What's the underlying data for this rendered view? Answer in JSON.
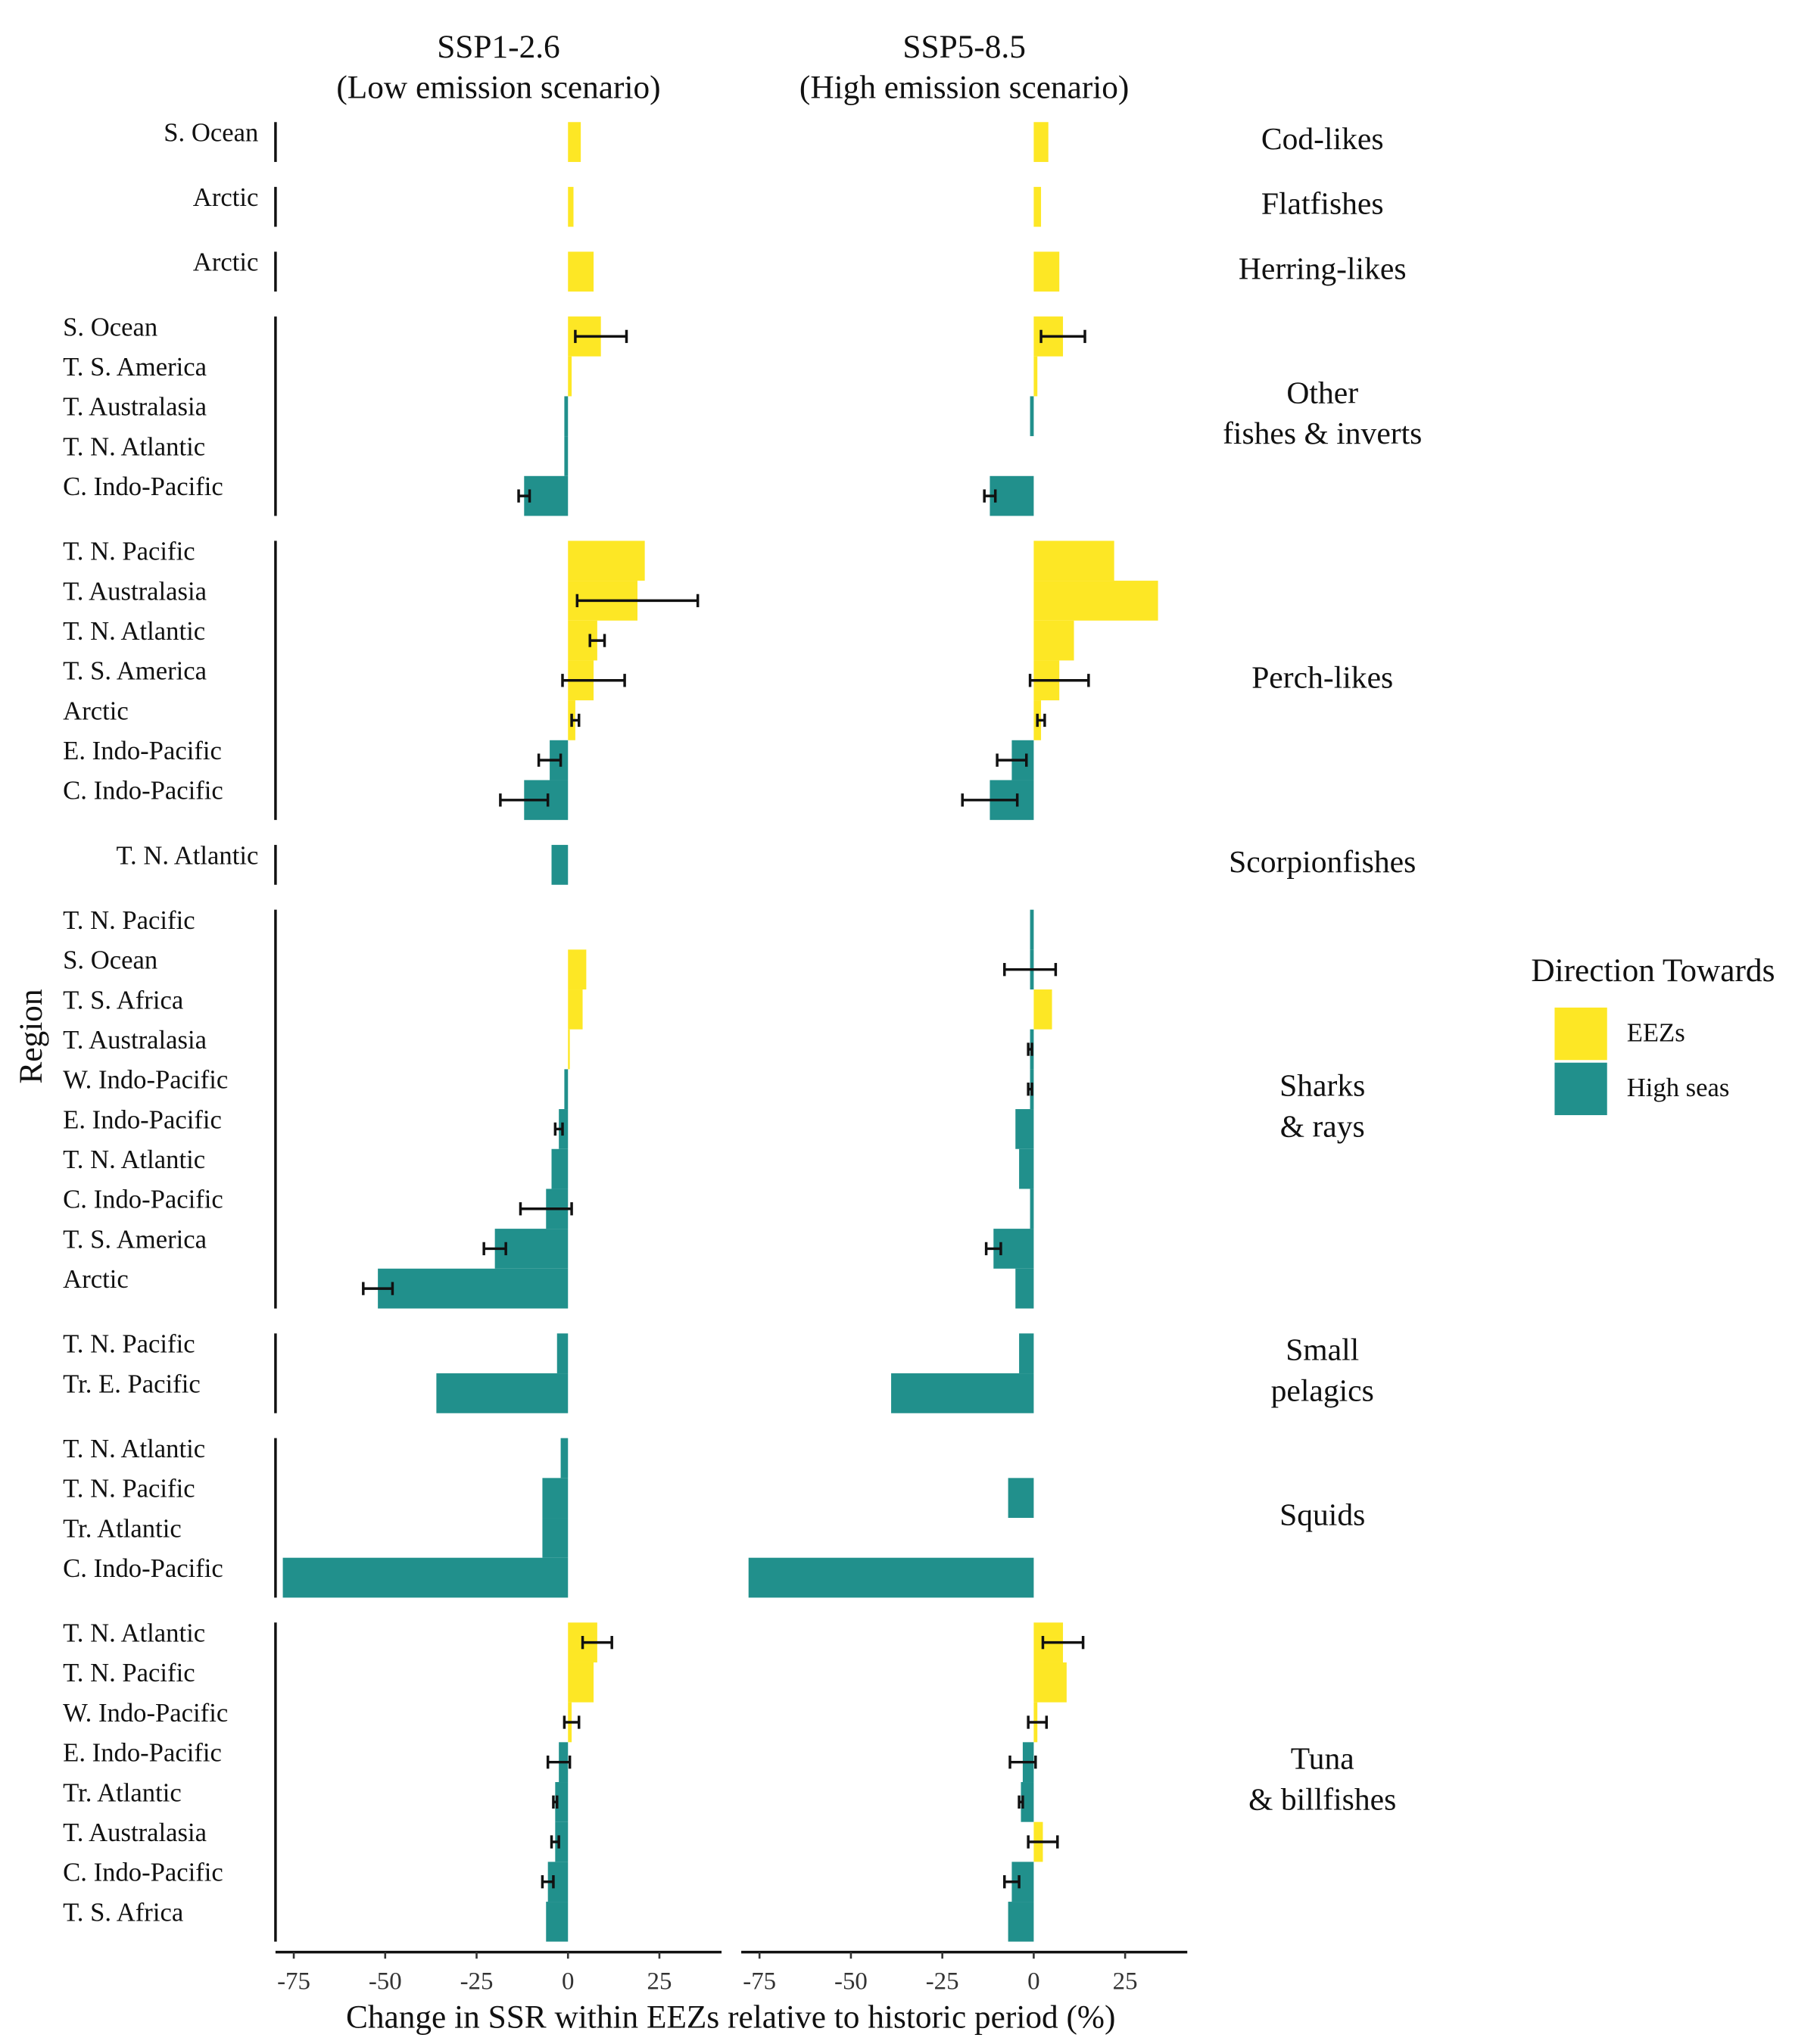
{
  "chart_data": {
    "type": "bar",
    "orientation": "horizontal",
    "panels": [
      {
        "title": [
          "SSP1-2.6",
          "(Low emission scenario)"
        ]
      },
      {
        "title": [
          "SSP5-8.5",
          "(High emission scenario)"
        ]
      }
    ],
    "xlabel": "Change in SSR within EEZs relative to historic period (%)",
    "ylabel": "Region",
    "xlim": [
      -80,
      42
    ],
    "xticks": [
      -75,
      -50,
      -25,
      0,
      25
    ],
    "legend": {
      "title": "Direction Towards",
      "entries": [
        {
          "name": "EEZs",
          "color": "#fde725"
        },
        {
          "name": "High seas",
          "color": "#21908c"
        }
      ]
    },
    "groups": [
      {
        "name": [
          "Cod-likes"
        ],
        "regions": [
          "S. Ocean"
        ],
        "series": [
          {
            "values": [
              3.5
            ],
            "errors": [
              null
            ]
          },
          {
            "values": [
              4
            ],
            "errors": [
              null
            ]
          }
        ]
      },
      {
        "name": [
          "Flatfishes"
        ],
        "regions": [
          "Arctic"
        ],
        "series": [
          {
            "values": [
              1.5
            ],
            "errors": [
              null
            ]
          },
          {
            "values": [
              2
            ],
            "errors": [
              null
            ]
          }
        ]
      },
      {
        "name": [
          "Herring-likes"
        ],
        "regions": [
          "Arctic"
        ],
        "series": [
          {
            "values": [
              7
            ],
            "errors": [
              null
            ]
          },
          {
            "values": [
              7
            ],
            "errors": [
              null
            ]
          }
        ]
      },
      {
        "name": [
          "Other",
          "fishes & inverts"
        ],
        "regions": [
          "S. Ocean",
          "T. S. America",
          "T. Australasia",
          "T. N. Atlantic",
          "C. Indo-Pacific"
        ],
        "series": [
          {
            "values": [
              9,
              1,
              -1,
              -1,
              -12
            ],
            "errors": [
              7,
              null,
              null,
              null,
              1.5
            ]
          },
          {
            "values": [
              8,
              1,
              -1,
              null,
              -12
            ],
            "errors": [
              6,
              null,
              null,
              null,
              1.5
            ]
          }
        ]
      },
      {
        "name": [
          "Perch-likes"
        ],
        "regions": [
          "T. N. Pacific",
          "T. Australasia",
          "T. N. Atlantic",
          "T. S. America",
          "Arctic",
          "E. Indo-Pacific",
          "C. Indo-Pacific"
        ],
        "series": [
          {
            "values": [
              21,
              19,
              8,
              7,
              2,
              -5,
              -12
            ],
            "errors": [
              null,
              16.5,
              2,
              8.5,
              1,
              3,
              6.5
            ]
          },
          {
            "values": [
              22,
              34,
              11,
              7,
              2,
              -6,
              -12
            ],
            "errors": [
              null,
              null,
              null,
              8,
              1,
              4,
              7.5
            ]
          }
        ]
      },
      {
        "name": [
          "Scorpionfishes"
        ],
        "regions": [
          "T. N. Atlantic"
        ],
        "series": [
          {
            "values": [
              -4.5
            ],
            "errors": [
              null
            ]
          },
          {
            "values": [
              null
            ],
            "errors": [
              null
            ]
          }
        ]
      },
      {
        "name": [
          "Sharks",
          "& rays"
        ],
        "regions": [
          "T. N. Pacific",
          "S. Ocean",
          "T. S. Africa",
          "T. Australasia",
          "W. Indo-Pacific",
          "E. Indo-Pacific",
          "T. N. Atlantic",
          "C. Indo-Pacific",
          "T. S. America",
          "Arctic"
        ],
        "series": [
          {
            "values": [
              null,
              5,
              4,
              0.5,
              -1,
              -2.5,
              -4.5,
              -6,
              -20,
              -52
            ],
            "errors": [
              null,
              null,
              null,
              null,
              null,
              1,
              null,
              7,
              3,
              4
            ]
          },
          {
            "values": [
              -1,
              -1,
              5,
              -1,
              -1,
              -5,
              -4,
              -1,
              -11,
              -5
            ],
            "errors": [
              null,
              7,
              null,
              0.5,
              0.5,
              null,
              null,
              null,
              2,
              null
            ]
          }
        ]
      },
      {
        "name": [
          "Small",
          "pelagics"
        ],
        "regions": [
          "T. N. Pacific",
          "Tr. E. Pacific"
        ],
        "series": [
          {
            "values": [
              -3,
              -36
            ],
            "errors": [
              null,
              null
            ]
          },
          {
            "values": [
              -4,
              -39
            ],
            "errors": [
              null,
              null
            ]
          }
        ]
      },
      {
        "name": [
          "Squids"
        ],
        "regions": [
          "T. N. Atlantic",
          "T. N. Pacific",
          "Tr. Atlantic",
          "C. Indo-Pacific"
        ],
        "series": [
          {
            "values": [
              -2,
              -7,
              -7,
              -78
            ],
            "errors": [
              null,
              null,
              null,
              null
            ]
          },
          {
            "values": [
              null,
              -7,
              null,
              -78
            ],
            "errors": [
              null,
              null,
              null,
              null
            ]
          }
        ]
      },
      {
        "name": [
          "Tuna",
          "& billfishes"
        ],
        "regions": [
          "T. N. Atlantic",
          "T. N. Pacific",
          "W. Indo-Pacific",
          "E. Indo-Pacific",
          "Tr. Atlantic",
          "T. Australasia",
          "C. Indo-Pacific",
          "T. S. Africa"
        ],
        "series": [
          {
            "values": [
              8,
              7,
              1,
              -2.5,
              -3.5,
              -3.5,
              -5.5,
              -6
            ],
            "errors": [
              4,
              null,
              2,
              3,
              0.5,
              1,
              1.5,
              null
            ]
          },
          {
            "values": [
              8,
              9,
              1,
              -3,
              -3.5,
              2.5,
              -6,
              -7
            ],
            "errors": [
              5.5,
              null,
              2.5,
              3.5,
              0.5,
              4,
              2,
              null
            ]
          }
        ]
      }
    ]
  }
}
